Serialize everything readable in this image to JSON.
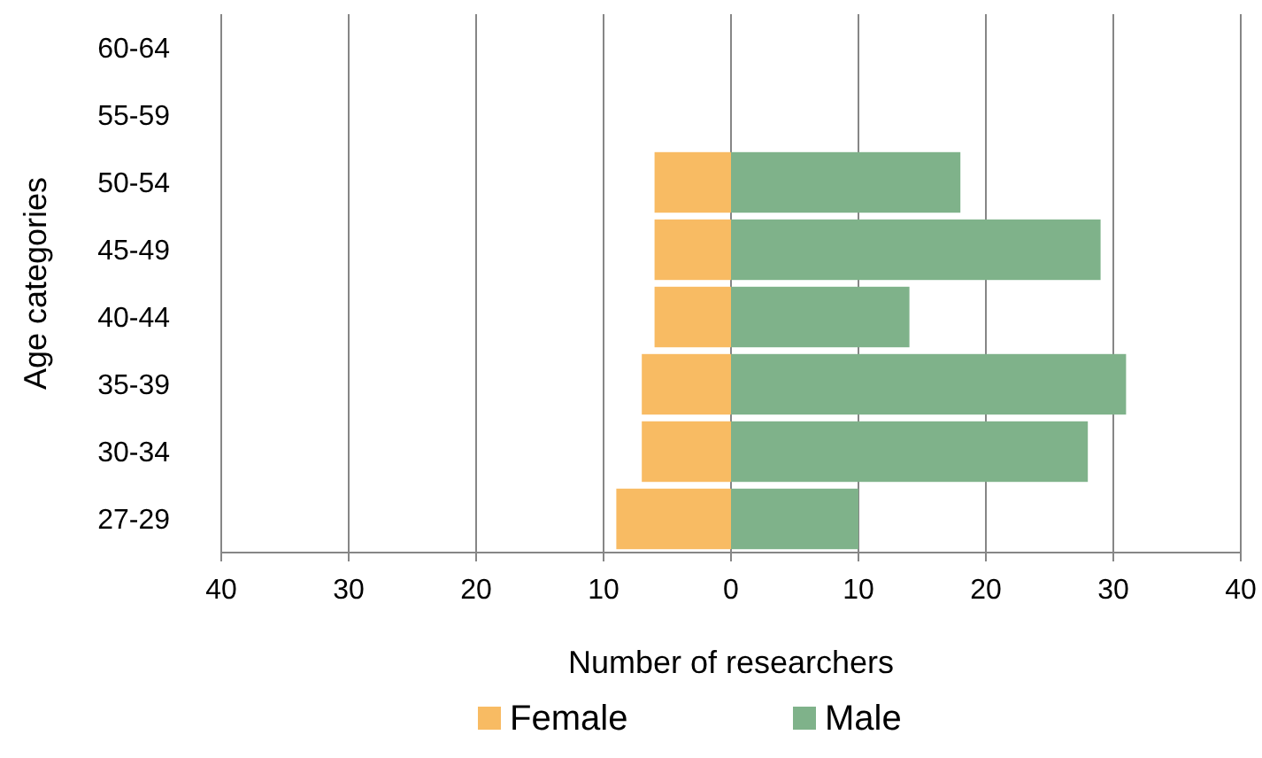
{
  "chart_data": {
    "type": "bar",
    "orientation": "horizontal",
    "xlabel": "Number of researchers",
    "ylabel": "Age categories",
    "categories": [
      "60-64",
      "55-59",
      "50-54",
      "45-49",
      "40-44",
      "35-39",
      "30-34",
      "27-29"
    ],
    "series": [
      {
        "name": "Female",
        "color": "#f8bb63",
        "values": [
          0,
          0,
          -6,
          -6,
          -6,
          -7,
          -7,
          -9
        ]
      },
      {
        "name": "Male",
        "color": "#7fb28a",
        "values": [
          0,
          0,
          18,
          29,
          14,
          31,
          28,
          10
        ]
      }
    ],
    "xlim": [
      -40,
      40
    ],
    "xticks": [
      {
        "value": -40,
        "label": "40"
      },
      {
        "value": -30,
        "label": "30"
      },
      {
        "value": -20,
        "label": "20"
      },
      {
        "value": -10,
        "label": "10"
      },
      0,
      10,
      20,
      30,
      40
    ],
    "grid": "x",
    "legend": "bottom",
    "stacked": true
  }
}
